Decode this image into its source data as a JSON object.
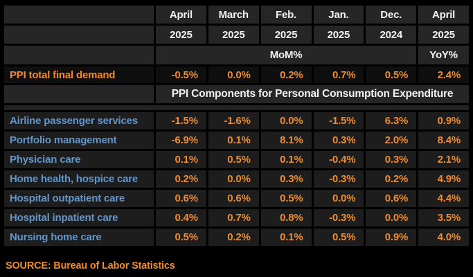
{
  "colors": {
    "background": "#000000",
    "header_cell": "#262626",
    "data_cell": "#1d1d1d",
    "summary_cell": "#0f0f0f",
    "text_white": "#f2f2f2",
    "text_orange": "#ee8c2e",
    "text_blue": "#6495c8"
  },
  "table": {
    "columns": [
      {
        "month": "April",
        "year": "2025"
      },
      {
        "month": "March",
        "year": "2025"
      },
      {
        "month": "Feb.",
        "year": "2025"
      },
      {
        "month": "Jan.",
        "year": "2025"
      },
      {
        "month": "Dec.",
        "year": "2024"
      },
      {
        "month": "April",
        "year": "2025"
      }
    ],
    "mom_label": "MoM%",
    "yoy_label": "YoY%",
    "summary_row": {
      "label": "PPI total final demand",
      "values": [
        "-0.5%",
        "0.0%",
        "0.2%",
        "0.7%",
        "0.5%",
        "2.4%"
      ]
    },
    "section_header": "PPI Components for Personal Consumption Expenditure",
    "rows": [
      {
        "label": "Airline passenger services",
        "values": [
          "-1.5%",
          "-1.6%",
          "0.0%",
          "-1.5%",
          "6.3%",
          "0.9%"
        ]
      },
      {
        "label": "Portfolio management",
        "values": [
          "-6.9%",
          "0.1%",
          "8.1%",
          "0.3%",
          "2.0%",
          "8.4%"
        ]
      },
      {
        "label": "Physician care",
        "values": [
          "0.1%",
          "0.5%",
          "0.1%",
          "-0.4%",
          "0.3%",
          "2.1%"
        ]
      },
      {
        "label": "Home health, hospice care",
        "values": [
          "0.2%",
          "0.0%",
          "0.3%",
          "-0.3%",
          "0.2%",
          "4.9%"
        ]
      },
      {
        "label": "Hospital outpatient care",
        "values": [
          "0.6%",
          "0.6%",
          "0.5%",
          "0.0%",
          "0.6%",
          "4.4%"
        ]
      },
      {
        "label": "Hospital inpatient care",
        "values": [
          "0.4%",
          "0.7%",
          "0.8%",
          "-0.3%",
          "0.0%",
          "3.5%"
        ]
      },
      {
        "label": "Nursing home care",
        "values": [
          "0.5%",
          "0.2%",
          "0.1%",
          "0.5%",
          "0.9%",
          "4.0%"
        ]
      }
    ]
  },
  "source": "SOURCE: Bureau of Labor Statistics",
  "chart_data": {
    "type": "table",
    "title": "PPI Components for Personal Consumption Expenditure",
    "columns": [
      "April 2025",
      "March 2025",
      "Feb. 2025",
      "Jan. 2025",
      "Dec. 2024",
      "April 2025"
    ],
    "column_units": [
      "MoM%",
      "MoM%",
      "MoM%",
      "MoM%",
      "MoM%",
      "YoY%"
    ],
    "rows": [
      {
        "label": "PPI total final demand",
        "values": [
          -0.5,
          0.0,
          0.2,
          0.7,
          0.5,
          2.4
        ]
      },
      {
        "label": "Airline passenger services",
        "values": [
          -1.5,
          -1.6,
          0.0,
          -1.5,
          6.3,
          0.9
        ]
      },
      {
        "label": "Portfolio management",
        "values": [
          -6.9,
          0.1,
          8.1,
          0.3,
          2.0,
          8.4
        ]
      },
      {
        "label": "Physician care",
        "values": [
          0.1,
          0.5,
          0.1,
          -0.4,
          0.3,
          2.1
        ]
      },
      {
        "label": "Home health, hospice care",
        "values": [
          0.2,
          0.0,
          0.3,
          -0.3,
          0.2,
          4.9
        ]
      },
      {
        "label": "Hospital outpatient care",
        "values": [
          0.6,
          0.6,
          0.5,
          0.0,
          0.6,
          4.4
        ]
      },
      {
        "label": "Hospital inpatient care",
        "values": [
          0.4,
          0.7,
          0.8,
          -0.3,
          0.0,
          3.5
        ]
      },
      {
        "label": "Nursing home care",
        "values": [
          0.5,
          0.2,
          0.1,
          0.5,
          0.9,
          4.0
        ]
      }
    ],
    "value_unit": "percent",
    "source": "SOURCE: Bureau of Labor Statistics"
  }
}
